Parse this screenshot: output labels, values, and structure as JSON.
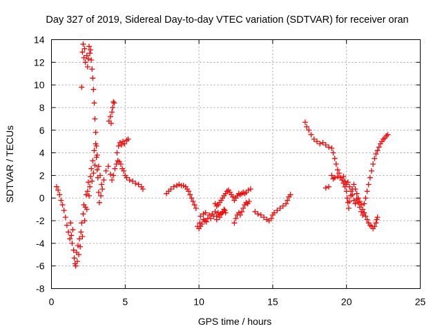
{
  "chart_data": {
    "type": "scatter",
    "title": "Day 327 of 2019, Sidereal Day-to-day VTEC variation (SDTVAR) for receiver oran",
    "xlabel": "GPS time / hours",
    "ylabel": "SDTVAR / TECUs",
    "xlim": [
      0,
      25
    ],
    "ylim": [
      -8,
      14
    ],
    "xticks": [
      0,
      5,
      10,
      15,
      20,
      25
    ],
    "yticks": [
      -8,
      -6,
      -4,
      -2,
      0,
      2,
      4,
      6,
      8,
      10,
      12,
      14
    ],
    "grid": true,
    "marker": "+",
    "color": "#ff0000",
    "series": [
      {
        "name": "SDTVAR",
        "points": [
          [
            0.35,
            1.0
          ],
          [
            0.45,
            0.7
          ],
          [
            0.55,
            0.3
          ],
          [
            0.65,
            -0.2
          ],
          [
            0.75,
            -0.6
          ],
          [
            0.85,
            -1.1
          ],
          [
            0.95,
            -1.7
          ],
          [
            1.05,
            -2.4
          ],
          [
            1.15,
            -3.0
          ],
          [
            1.25,
            -3.6
          ],
          [
            1.3,
            -2.2
          ],
          [
            1.35,
            -3.3
          ],
          [
            1.4,
            -4.0
          ],
          [
            1.45,
            -2.8
          ],
          [
            1.5,
            -4.6
          ],
          [
            1.55,
            -5.3
          ],
          [
            1.6,
            -5.8
          ],
          [
            1.65,
            -6.0
          ],
          [
            1.7,
            -4.8
          ],
          [
            1.75,
            -5.6
          ],
          [
            1.8,
            -4.2
          ],
          [
            1.85,
            -5.0
          ],
          [
            1.9,
            -3.6
          ],
          [
            1.95,
            -4.3
          ],
          [
            2.0,
            -3.0
          ],
          [
            2.05,
            -2.2
          ],
          [
            2.1,
            -3.4
          ],
          [
            2.15,
            -1.4
          ],
          [
            2.2,
            -0.6
          ],
          [
            2.25,
            -2.0
          ],
          [
            2.3,
            -0.8
          ],
          [
            2.35,
            0.3
          ],
          [
            2.4,
            -1.0
          ],
          [
            2.45,
            0.6
          ],
          [
            2.5,
            1.4
          ],
          [
            2.55,
            0.2
          ],
          [
            2.6,
            1.0
          ],
          [
            2.65,
            1.9
          ],
          [
            2.7,
            2.6
          ],
          [
            2.75,
            1.5
          ],
          [
            2.8,
            3.3
          ],
          [
            2.85,
            2.2
          ],
          [
            2.9,
            4.2
          ],
          [
            2.95,
            2.9
          ],
          [
            3.0,
            4.8
          ],
          [
            3.05,
            3.6
          ],
          [
            3.1,
            2.5
          ],
          [
            3.15,
            1.8
          ],
          [
            3.2,
            0.5
          ],
          [
            3.25,
            -0.4
          ],
          [
            3.35,
            0.2
          ],
          [
            3.45,
            0.8
          ],
          [
            3.55,
            1.6
          ],
          [
            3.7,
            2.4
          ],
          [
            3.85,
            2.8
          ],
          [
            4.0,
            2.1
          ],
          [
            4.1,
            1.6
          ],
          [
            4.2,
            2.0
          ],
          [
            4.3,
            2.6
          ],
          [
            4.4,
            3.0
          ],
          [
            4.5,
            3.3
          ],
          [
            4.6,
            3.2
          ],
          [
            4.7,
            3.0
          ],
          [
            4.8,
            2.6
          ],
          [
            4.9,
            2.4
          ],
          [
            5.0,
            2.0
          ],
          [
            5.1,
            1.8
          ],
          [
            5.3,
            1.6
          ],
          [
            5.5,
            1.5
          ],
          [
            5.7,
            1.3
          ],
          [
            5.9,
            1.2
          ],
          [
            6.1,
            1.0
          ],
          [
            6.2,
            0.8
          ],
          [
            2.05,
            9.8
          ],
          [
            2.1,
            12.9
          ],
          [
            2.15,
            13.6
          ],
          [
            2.2,
            12.4
          ],
          [
            2.25,
            13.2
          ],
          [
            2.3,
            12.0
          ],
          [
            2.4,
            12.6
          ],
          [
            2.45,
            11.6
          ],
          [
            2.5,
            12.3
          ],
          [
            2.55,
            13.4
          ],
          [
            2.6,
            12.8
          ],
          [
            2.65,
            13.1
          ],
          [
            2.7,
            12.2
          ],
          [
            2.75,
            11.4
          ],
          [
            2.8,
            10.6
          ],
          [
            2.85,
            9.6
          ],
          [
            2.9,
            8.4
          ],
          [
            2.95,
            7.0
          ],
          [
            3.0,
            5.8
          ],
          [
            3.05,
            4.6
          ],
          [
            3.1,
            3.8
          ],
          [
            3.2,
            2.8
          ],
          [
            3.3,
            2.0
          ],
          [
            3.4,
            1.2
          ],
          [
            3.9,
            6.8
          ],
          [
            4.0,
            7.2
          ],
          [
            4.05,
            6.6
          ],
          [
            4.1,
            7.6
          ],
          [
            4.15,
            8.0
          ],
          [
            4.2,
            8.5
          ],
          [
            4.25,
            8.4
          ],
          [
            4.45,
            4.0
          ],
          [
            4.55,
            4.6
          ],
          [
            4.65,
            4.9
          ],
          [
            4.75,
            4.7
          ],
          [
            4.85,
            5.0
          ],
          [
            4.95,
            4.8
          ],
          [
            5.1,
            5.1
          ],
          [
            5.2,
            5.2
          ],
          [
            7.8,
            0.4
          ],
          [
            7.95,
            0.6
          ],
          [
            8.1,
            0.8
          ],
          [
            8.3,
            1.0
          ],
          [
            8.5,
            1.1
          ],
          [
            8.65,
            1.2
          ],
          [
            8.8,
            1.1
          ],
          [
            8.95,
            1.1
          ],
          [
            9.1,
            1.0
          ],
          [
            9.2,
            0.8
          ],
          [
            9.3,
            0.6
          ],
          [
            9.4,
            0.3
          ],
          [
            9.5,
            0.0
          ],
          [
            9.6,
            -0.3
          ],
          [
            9.7,
            -0.6
          ],
          [
            9.8,
            -0.9
          ],
          [
            9.9,
            -2.5
          ],
          [
            10.0,
            -2.7
          ],
          [
            10.05,
            -2.2
          ],
          [
            10.1,
            -2.5
          ],
          [
            10.2,
            -2.3
          ],
          [
            10.3,
            -1.9
          ],
          [
            10.4,
            -2.0
          ],
          [
            10.5,
            -2.1
          ],
          [
            10.6,
            -1.8
          ],
          [
            10.7,
            -1.5
          ],
          [
            10.8,
            -1.8
          ],
          [
            10.9,
            -1.4
          ],
          [
            11.0,
            -1.6
          ],
          [
            11.1,
            -1.2
          ],
          [
            11.2,
            -1.6
          ],
          [
            11.3,
            -1.3
          ],
          [
            11.4,
            -1.5
          ],
          [
            11.5,
            -1.4
          ],
          [
            11.6,
            -1.2
          ],
          [
            11.7,
            -1.0
          ],
          [
            11.8,
            -1.3
          ],
          [
            10.1,
            -1.6
          ],
          [
            10.3,
            -1.4
          ],
          [
            10.45,
            -1.3
          ],
          [
            11.1,
            -0.5
          ],
          [
            11.2,
            -0.7
          ],
          [
            11.3,
            -0.6
          ],
          [
            11.4,
            -0.4
          ],
          [
            11.5,
            -0.2
          ],
          [
            11.6,
            0.0
          ],
          [
            11.7,
            0.2
          ],
          [
            11.8,
            0.4
          ],
          [
            11.9,
            0.6
          ],
          [
            12.0,
            0.7
          ],
          [
            12.1,
            0.5
          ],
          [
            12.2,
            0.3
          ],
          [
            12.3,
            0.1
          ],
          [
            12.4,
            -0.2
          ],
          [
            12.5,
            0.0
          ],
          [
            12.6,
            0.2
          ],
          [
            12.7,
            0.4
          ],
          [
            12.8,
            0.3
          ],
          [
            12.9,
            0.4
          ],
          [
            13.0,
            0.5
          ],
          [
            13.1,
            0.4
          ],
          [
            13.2,
            0.5
          ],
          [
            13.35,
            0.7
          ],
          [
            13.5,
            0.8
          ],
          [
            11.2,
            -1.9
          ],
          [
            11.4,
            -1.7
          ],
          [
            11.6,
            -1.3
          ],
          [
            11.75,
            -1.1
          ],
          [
            12.4,
            -2.2
          ],
          [
            12.5,
            -1.8
          ],
          [
            12.6,
            -1.5
          ],
          [
            12.7,
            -1.3
          ],
          [
            12.8,
            -1.5
          ],
          [
            12.9,
            -1.2
          ],
          [
            13.0,
            -0.9
          ],
          [
            13.1,
            -0.6
          ],
          [
            13.2,
            -0.4
          ],
          [
            13.3,
            -0.5
          ],
          [
            13.4,
            -0.3
          ],
          [
            13.8,
            -1.2
          ],
          [
            14.0,
            -1.4
          ],
          [
            14.2,
            -1.5
          ],
          [
            14.4,
            -1.7
          ],
          [
            14.6,
            -1.9
          ],
          [
            14.75,
            -2.0
          ],
          [
            14.9,
            -1.8
          ],
          [
            15.0,
            -1.5
          ],
          [
            15.1,
            -1.3
          ],
          [
            15.3,
            -1.1
          ],
          [
            15.5,
            -0.9
          ],
          [
            15.7,
            -0.7
          ],
          [
            15.9,
            -0.5
          ],
          [
            16.0,
            -0.2
          ],
          [
            16.1,
            0.1
          ],
          [
            16.2,
            0.3
          ],
          [
            17.2,
            6.7
          ],
          [
            17.3,
            6.3
          ],
          [
            17.45,
            6.0
          ],
          [
            17.6,
            5.6
          ],
          [
            17.8,
            5.2
          ],
          [
            18.0,
            5.0
          ],
          [
            18.2,
            4.8
          ],
          [
            18.4,
            4.9
          ],
          [
            18.6,
            4.7
          ],
          [
            18.8,
            4.5
          ],
          [
            19.0,
            4.4
          ],
          [
            19.1,
            4.0
          ],
          [
            19.2,
            3.5
          ],
          [
            19.3,
            3.0
          ],
          [
            19.4,
            2.5
          ],
          [
            19.5,
            2.2
          ],
          [
            19.6,
            1.8
          ],
          [
            19.7,
            1.6
          ],
          [
            19.8,
            1.3
          ],
          [
            19.9,
            1.0
          ],
          [
            20.0,
            0.6
          ],
          [
            20.05,
            0.0
          ],
          [
            20.1,
            -0.4
          ],
          [
            20.15,
            -0.9
          ],
          [
            20.2,
            -0.3
          ],
          [
            20.3,
            0.2
          ],
          [
            20.4,
            0.8
          ],
          [
            20.5,
            1.2
          ],
          [
            20.6,
            0.8
          ],
          [
            20.7,
            0.4
          ],
          [
            20.8,
            0.0
          ],
          [
            20.9,
            -0.3
          ],
          [
            21.0,
            -0.6
          ],
          [
            21.1,
            -1.0
          ],
          [
            21.2,
            -1.3
          ],
          [
            21.3,
            -1.6
          ],
          [
            21.4,
            -1.9
          ],
          [
            21.5,
            -2.2
          ],
          [
            21.6,
            -2.4
          ],
          [
            21.7,
            -2.5
          ],
          [
            21.8,
            -2.7
          ],
          [
            21.9,
            -2.5
          ],
          [
            22.0,
            -2.2
          ],
          [
            22.05,
            -1.9
          ],
          [
            22.1,
            -1.7
          ],
          [
            18.6,
            0.9
          ],
          [
            18.8,
            1.0
          ],
          [
            19.0,
            2.0
          ],
          [
            19.1,
            1.7
          ],
          [
            19.2,
            1.8
          ],
          [
            19.4,
            1.9
          ],
          [
            19.6,
            1.8
          ],
          [
            19.8,
            1.9
          ],
          [
            19.9,
            1.5
          ],
          [
            20.0,
            1.2
          ],
          [
            20.1,
            1.4
          ],
          [
            20.2,
            1.0
          ],
          [
            20.3,
            0.6
          ],
          [
            20.4,
            0.3
          ],
          [
            20.5,
            -0.2
          ],
          [
            20.6,
            -0.5
          ],
          [
            20.7,
            -0.1
          ],
          [
            20.8,
            -0.4
          ],
          [
            20.9,
            -0.8
          ],
          [
            21.0,
            -1.2
          ],
          [
            21.1,
            -1.5
          ],
          [
            21.2,
            -0.5
          ],
          [
            21.3,
            0.0
          ],
          [
            21.4,
            0.6
          ],
          [
            21.5,
            1.2
          ],
          [
            21.6,
            1.8
          ],
          [
            21.7,
            2.4
          ],
          [
            21.8,
            3.0
          ],
          [
            21.9,
            3.5
          ],
          [
            22.0,
            3.9
          ],
          [
            22.1,
            4.2
          ],
          [
            22.2,
            4.5
          ],
          [
            22.3,
            4.8
          ],
          [
            22.4,
            5.0
          ],
          [
            22.5,
            5.2
          ],
          [
            22.6,
            5.3
          ],
          [
            22.7,
            5.5
          ],
          [
            22.8,
            5.6
          ]
        ]
      }
    ]
  }
}
